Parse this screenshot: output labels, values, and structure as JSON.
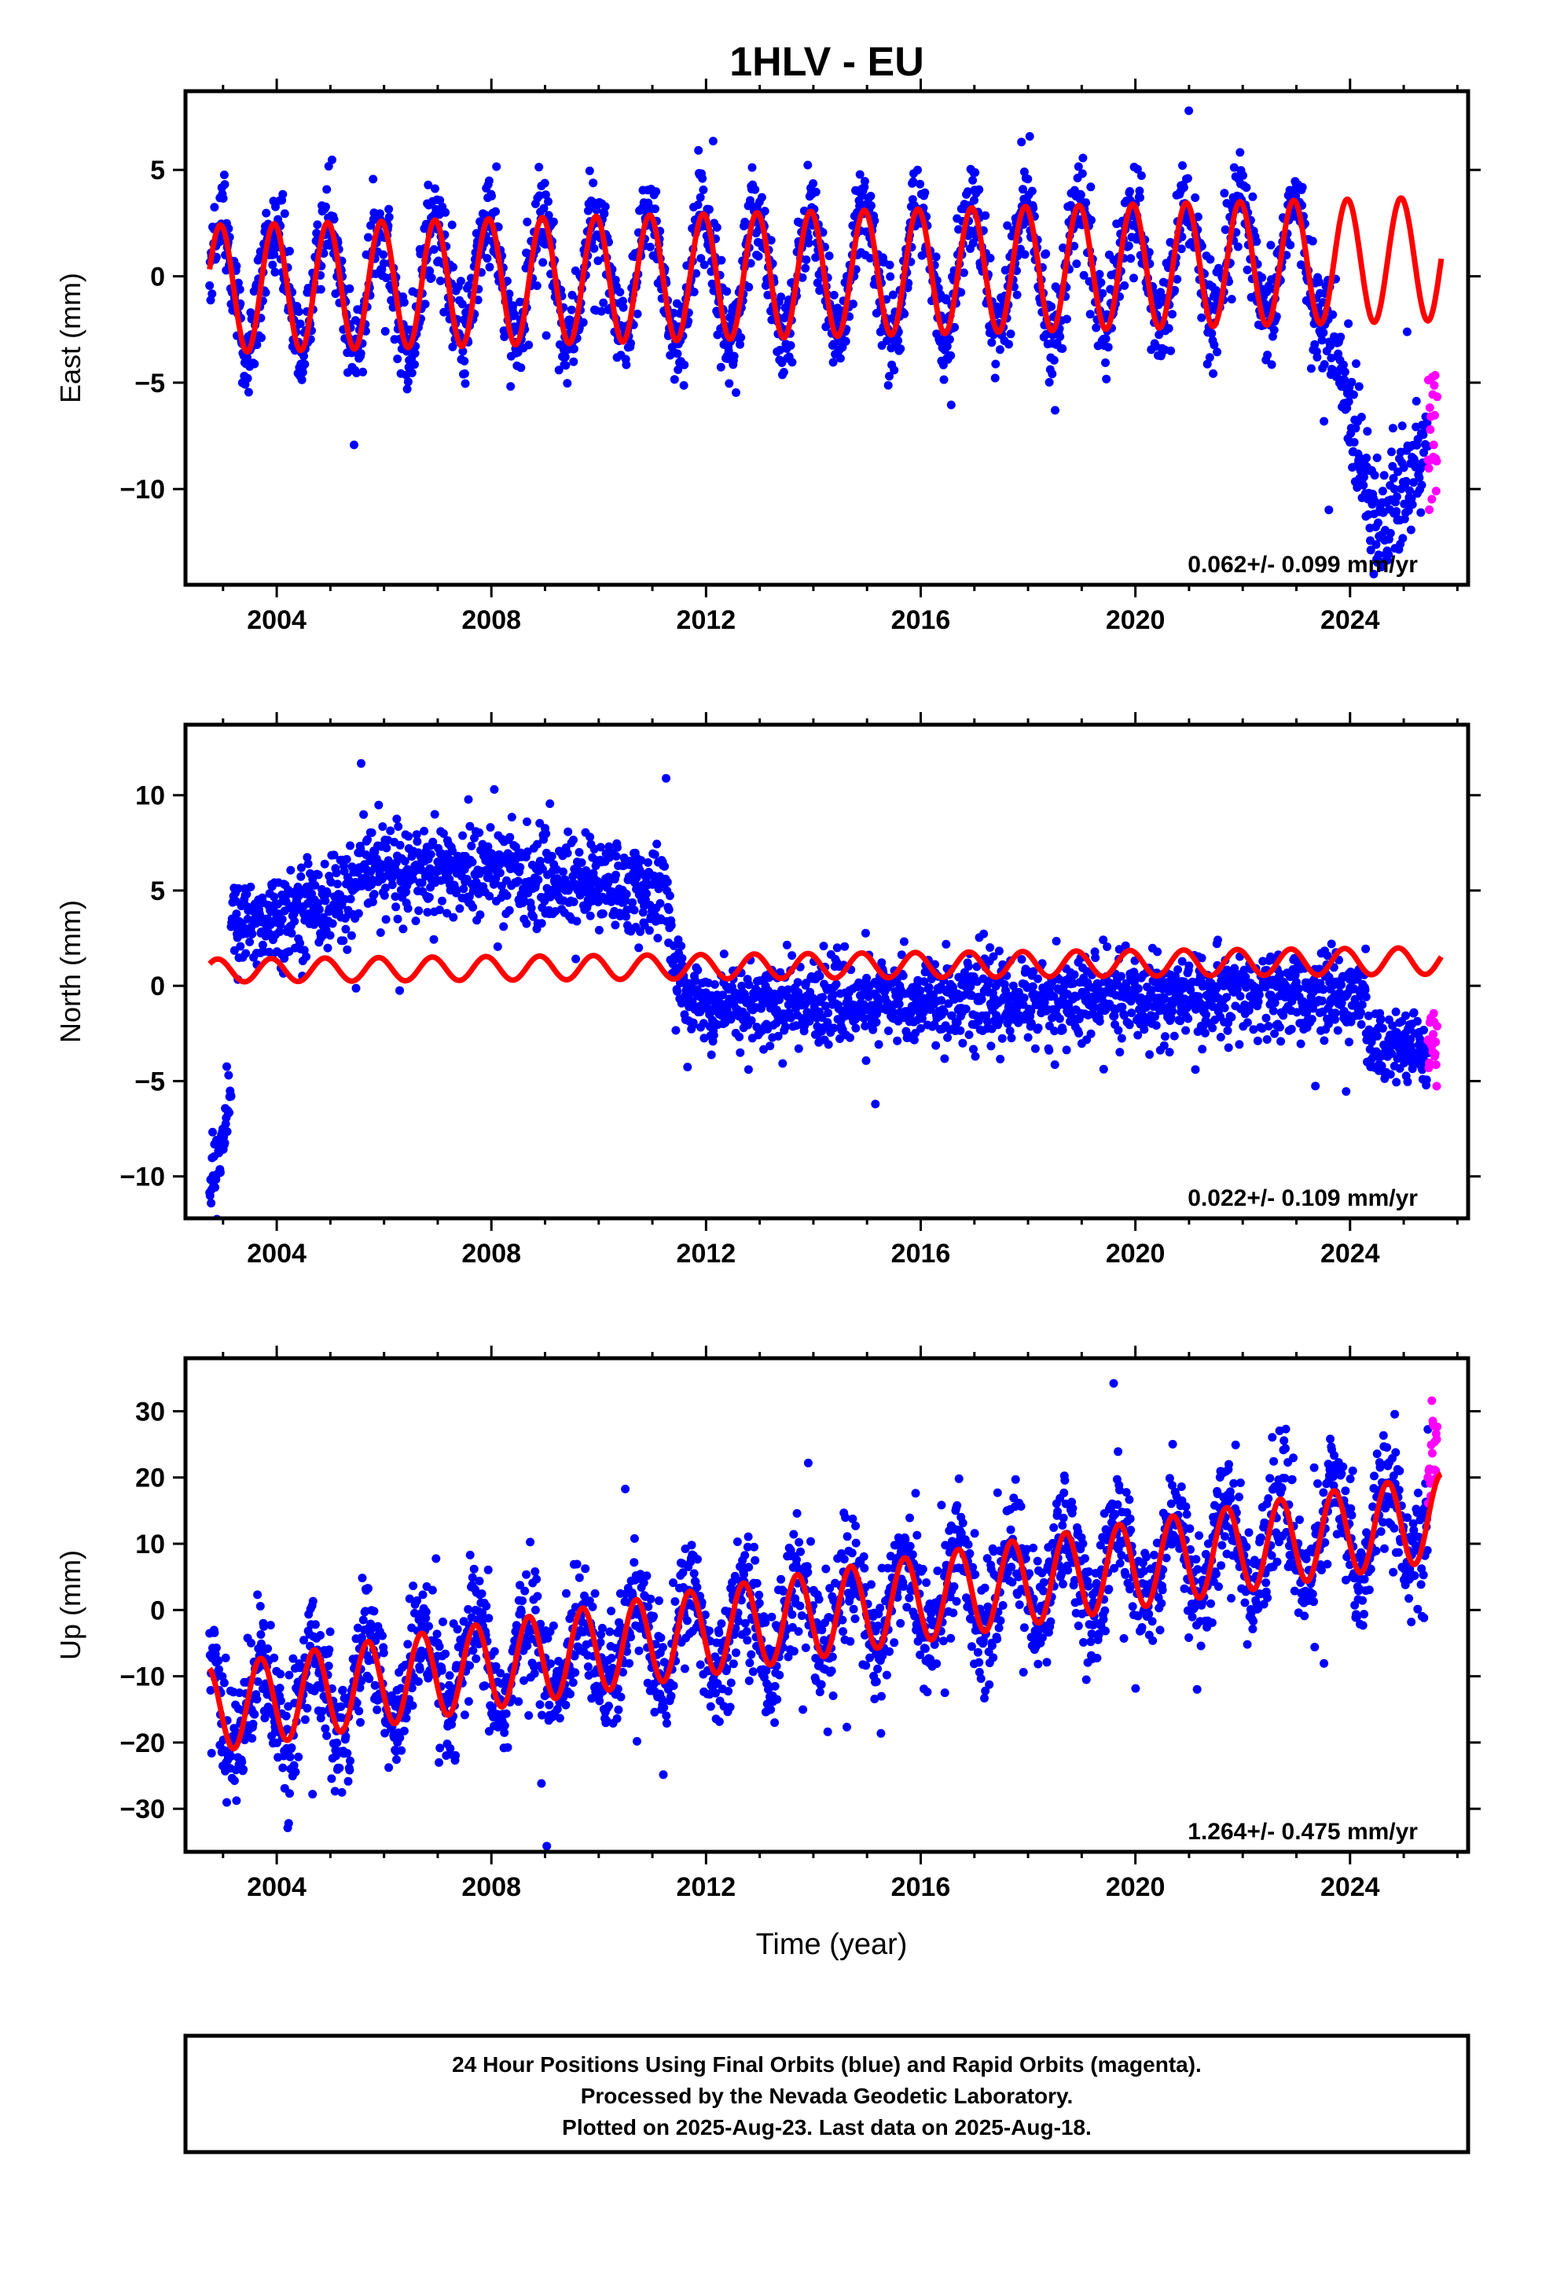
{
  "title": "1HLV - EU",
  "xlabel": "Time (year)",
  "caption": {
    "line1": "24 Hour Positions Using Final Orbits (blue) and Rapid Orbits (magenta).",
    "line2": "Processed by the Nevada Geodetic Laboratory.",
    "line3": "Plotted on 2025-Aug-23. Last data on 2025-Aug-18."
  },
  "colors": {
    "final": "#0000ff",
    "rapid": "#ff00ff",
    "model": "#ff0000",
    "frame": "#000000"
  },
  "chart_data": [
    {
      "type": "scatter",
      "ylabel": "East (mm)",
      "rate_label": "0.062+/- 0.099 mm/yr",
      "xlim": [
        2002.3,
        2026.2
      ],
      "ylim": [
        -14.5,
        8.7
      ],
      "xticks": [
        2004,
        2008,
        2012,
        2016,
        2020,
        2024
      ],
      "yticks": [
        5,
        0,
        -5,
        -10
      ],
      "grid": false,
      "data_range": [
        2002.75,
        2025.63
      ],
      "rapid_range": [
        2025.45,
        2025.63
      ],
      "series": [
        {
          "role": "model",
          "segments": [
            {
              "x": [
                2002.75,
                2025.7
              ],
              "offset": -0.6,
              "trend_per_year": 0.062,
              "t0": 2002.75,
              "amplitude_start": 3.0,
              "amplitude_end": 2.9,
              "period": 1.0,
              "phase": 0.05
            }
          ]
        },
        {
          "role": "final-orbit-points",
          "segments": [
            {
              "x": [
                2002.75,
                2023.55
              ],
              "model": "seasonal",
              "scatter_sd": 1.1
            },
            {
              "x": [
                2023.55,
                2024.6
              ],
              "y": [
                -2.0,
                -12.0
              ],
              "scatter_sd": 1.5
            },
            {
              "x": [
                2024.6,
                2025.45
              ],
              "y": [
                -12.0,
                -8.0
              ],
              "scatter_sd": 1.5
            }
          ]
        },
        {
          "role": "rapid-orbit-points",
          "segments": [
            {
              "x": [
                2025.45,
                2025.63
              ],
              "y": [
                -8.0,
                -7.0
              ],
              "scatter_sd": 1.8
            }
          ]
        }
      ]
    },
    {
      "type": "scatter",
      "ylabel": "North (mm)",
      "rate_label": "0.022+/- 0.109 mm/yr",
      "xlim": [
        2002.3,
        2026.2
      ],
      "ylim": [
        -12.2,
        13.7
      ],
      "xticks": [
        2004,
        2008,
        2012,
        2016,
        2020,
        2024
      ],
      "yticks": [
        10,
        5,
        0,
        -5,
        -10
      ],
      "grid": false,
      "data_range": [
        2002.75,
        2025.63
      ],
      "rapid_range": [
        2025.45,
        2025.63
      ],
      "series": [
        {
          "role": "model",
          "segments": [
            {
              "x": [
                2002.75,
                2025.7
              ],
              "offset": 0.8,
              "trend_per_year": 0.022,
              "t0": 2002.75,
              "amplitude_start": 0.6,
              "amplitude_end": 0.7,
              "period": 1.0,
              "phase": 0.1
            }
          ]
        },
        {
          "role": "final-orbit-points",
          "segments": [
            {
              "x": [
                2002.75,
                2003.15
              ],
              "y": [
                -11.0,
                -5.5
              ],
              "scatter_sd": 1.0
            },
            {
              "x": [
                2003.15,
                2005.5
              ],
              "y": [
                3.0,
                5.0
              ],
              "scatter_sd": 1.2
            },
            {
              "x": [
                2005.5,
                2008.5
              ],
              "y": [
                6.0,
                6.0
              ],
              "scatter_sd": 1.2
            },
            {
              "x": [
                2008.5,
                2011.3
              ],
              "y": [
                5.8,
                4.8
              ],
              "scatter_sd": 1.2
            },
            {
              "x": [
                2011.3,
                2011.7
              ],
              "y": [
                2.5,
                -1.0
              ],
              "scatter_sd": 1.0
            },
            {
              "x": [
                2011.7,
                2024.3
              ],
              "y": [
                -1.0,
                -0.5
              ],
              "scatter_sd": 1.1
            },
            {
              "x": [
                2024.3,
                2025.45
              ],
              "y": [
                -3.0,
                -3.2
              ],
              "scatter_sd": 0.9
            }
          ]
        },
        {
          "role": "rapid-orbit-points",
          "segments": [
            {
              "x": [
                2025.45,
                2025.63
              ],
              "y": [
                -3.0,
                -3.5
              ],
              "scatter_sd": 1.0
            }
          ]
        }
      ]
    },
    {
      "type": "scatter",
      "ylabel": "Up (mm)",
      "rate_label": "1.264+/- 0.475 mm/yr",
      "xlim": [
        2002.3,
        2026.2
      ],
      "ylim": [
        -36.5,
        38.0
      ],
      "xticks": [
        2004,
        2008,
        2012,
        2016,
        2020,
        2024
      ],
      "yticks": [
        30,
        20,
        10,
        0,
        -10,
        -20,
        -30
      ],
      "grid": false,
      "data_range": [
        2002.75,
        2025.63
      ],
      "rapid_range": [
        2025.45,
        2025.63
      ],
      "series": [
        {
          "role": "model",
          "segments": [
            {
              "x": [
                2002.75,
                2025.7
              ],
              "offset": -15.0,
              "trend_per_year": 1.264,
              "t0": 2002.75,
              "amplitude_start": 6.5,
              "amplitude_end": 6.5,
              "period": 1.0,
              "phase": 0.3
            }
          ]
        },
        {
          "role": "final-orbit-points",
          "segments": [
            {
              "x": [
                2002.75,
                2025.45
              ],
              "model": "seasonal",
              "scatter_sd": 4.5
            }
          ]
        },
        {
          "role": "rapid-orbit-points",
          "segments": [
            {
              "x": [
                2025.45,
                2025.63
              ],
              "y": [
                20.0,
                25.0
              ],
              "scatter_sd": 3.0
            }
          ]
        }
      ]
    }
  ]
}
